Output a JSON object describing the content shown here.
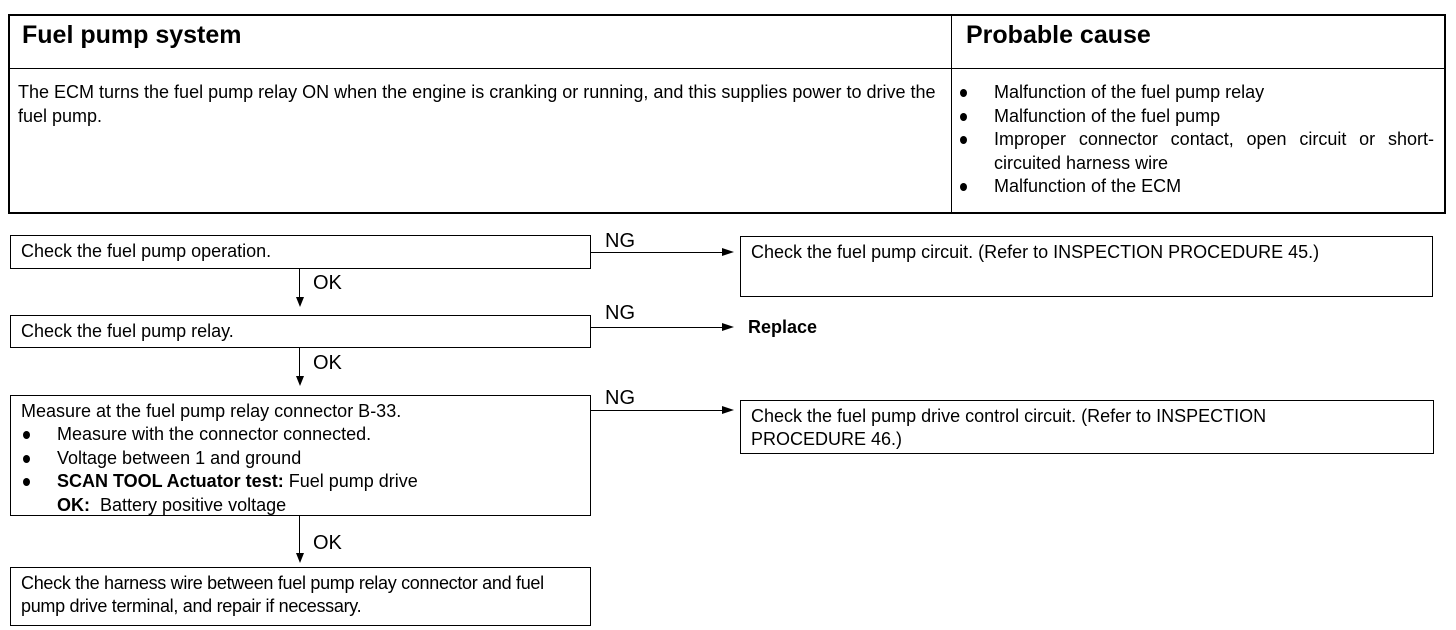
{
  "table": {
    "header_left": "Fuel pump system",
    "header_right": "Probable cause",
    "description": "The ECM turns the fuel pump relay ON when the engine is cranking or running, and this supplies power to drive the fuel pump.",
    "causes": [
      "Malfunction of the fuel pump relay",
      "Malfunction of the fuel pump",
      "Improper connector contact, open circuit or short-circuited harness wire",
      "Malfunction of the ECM"
    ]
  },
  "flow": {
    "step1": "Check the fuel pump operation.",
    "step1_ng": "Check the fuel pump circuit. (Refer to  INSPECTION PROCEDURE 45.)",
    "step2": "Check the fuel pump relay.",
    "step2_ng": "Replace",
    "step3": {
      "title": "Measure at the fuel pump relay connector B-33.",
      "bullets": [
        "Measure with the connector connected.",
        "Voltage between 1 and ground"
      ],
      "scan_label": "SCAN TOOL Actuator test:",
      "scan_value": "Fuel pump drive",
      "ok_label": "OK:",
      "ok_value": "Battery positive voltage"
    },
    "step3_ng": "Check the fuel pump drive control circuit. (Refer to  INSPECTION PROCEDURE 46.)",
    "step4": "Check the harness wire between fuel pump relay connector and fuel pump drive terminal, and repair if necessary.",
    "ok": "OK",
    "ng": "NG"
  }
}
